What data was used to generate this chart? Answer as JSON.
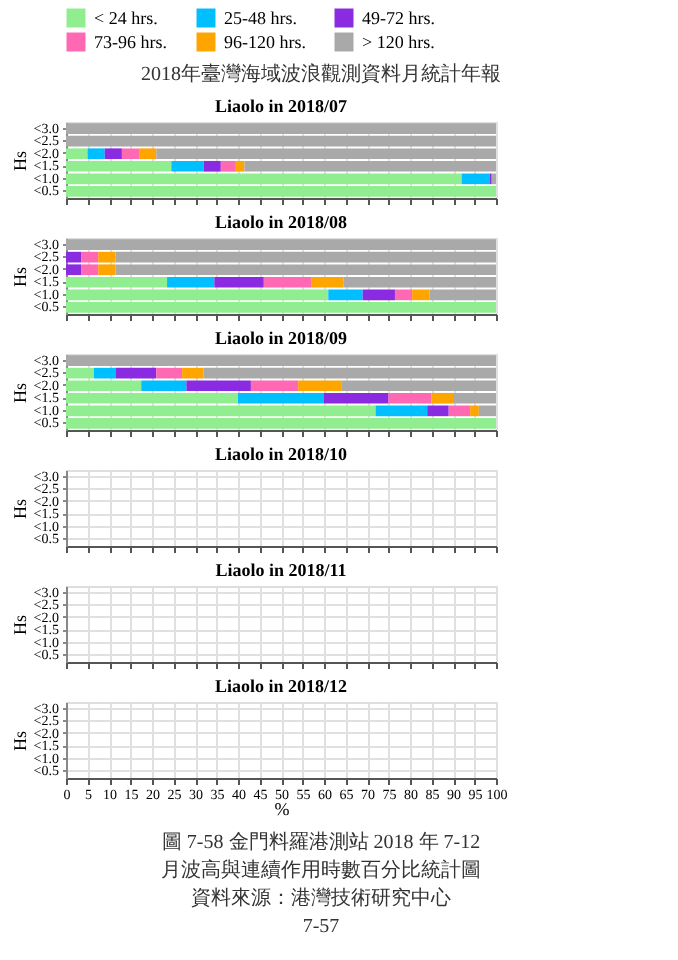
{
  "chart_data": [
    {
      "type": "bar",
      "orientation": "horizontal",
      "stacked": true,
      "title": "Liaolo in 2018/07",
      "ylabel": "Hs",
      "annotations": [
        "2018年臺灣海域波浪觀測資料月統計年報"
      ],
      "legend": "top",
      "grid": true,
      "tick_labels": "y",
      "xlim": [
        0,
        100
      ],
      "xticks": [
        0,
        5,
        10,
        15,
        20,
        25,
        30,
        35,
        40,
        45,
        50,
        55,
        60,
        65,
        70,
        75,
        80,
        85,
        90,
        95,
        100
      ],
      "categories": [
        "<3.0",
        "<2.5",
        "<2.0",
        "<1.5",
        "<1.0",
        "<0.5"
      ],
      "series": [
        {
          "name": "< 24 hrs.",
          "color": "#90ee90",
          "values": [
            0,
            0,
            5,
            24.5,
            92,
            100
          ]
        },
        {
          "name": "25-48 hrs.",
          "color": "#00bfff",
          "values": [
            0,
            0,
            4,
            7.5,
            6.5,
            0
          ]
        },
        {
          "name": "49-72 hrs.",
          "color": "#8a2be2",
          "values": [
            0,
            0,
            4,
            4,
            0.5,
            0
          ]
        },
        {
          "name": "73-96 hrs.",
          "color": "#ff69b4",
          "values": [
            0,
            0,
            4,
            3.5,
            0,
            0
          ]
        },
        {
          "name": "96-120 hrs.",
          "color": "#ffa500",
          "values": [
            0,
            0,
            4,
            2,
            0,
            0
          ]
        },
        {
          "name": "> 120 hrs.",
          "color": "#a9a9a9",
          "values": [
            100,
            100,
            79,
            58.5,
            1,
            0
          ]
        }
      ]
    },
    {
      "type": "bar",
      "orientation": "horizontal",
      "stacked": true,
      "title": "Liaolo in 2018/08",
      "ylabel": "Hs",
      "grid": true,
      "tick_labels": "y",
      "xlim": [
        0,
        100
      ],
      "xticks": [
        0,
        5,
        10,
        15,
        20,
        25,
        30,
        35,
        40,
        45,
        50,
        55,
        60,
        65,
        70,
        75,
        80,
        85,
        90,
        95,
        100
      ],
      "categories": [
        "<3.0",
        "<2.5",
        "<2.0",
        "<1.5",
        "<1.0",
        "<0.5"
      ],
      "series": [
        {
          "name": "< 24 hrs.",
          "color": "#90ee90",
          "values": [
            0,
            0,
            0,
            23.5,
            61,
            100
          ]
        },
        {
          "name": "25-48 hrs.",
          "color": "#00bfff",
          "values": [
            0,
            0,
            0,
            11,
            8,
            0
          ]
        },
        {
          "name": "49-72 hrs.",
          "color": "#8a2be2",
          "values": [
            0,
            3.5,
            3.5,
            11.5,
            7.5,
            0
          ]
        },
        {
          "name": "73-96 hrs.",
          "color": "#ff69b4",
          "values": [
            0,
            4,
            4,
            11,
            4,
            0
          ]
        },
        {
          "name": "96-120 hrs.",
          "color": "#ffa500",
          "values": [
            0,
            4,
            4,
            7.5,
            4,
            0
          ]
        },
        {
          "name": "> 120 hrs.",
          "color": "#a9a9a9",
          "values": [
            100,
            88.5,
            88.5,
            35.5,
            15.5,
            0
          ]
        }
      ]
    },
    {
      "type": "bar",
      "orientation": "horizontal",
      "stacked": true,
      "title": "Liaolo in 2018/09",
      "ylabel": "Hs",
      "grid": true,
      "tick_labels": "y",
      "xlim": [
        0,
        100
      ],
      "xticks": [
        0,
        5,
        10,
        15,
        20,
        25,
        30,
        35,
        40,
        45,
        50,
        55,
        60,
        65,
        70,
        75,
        80,
        85,
        90,
        95,
        100
      ],
      "categories": [
        "<3.0",
        "<2.5",
        "<2.0",
        "<1.5",
        "<1.0",
        "<0.5"
      ],
      "series": [
        {
          "name": "< 24 hrs.",
          "color": "#90ee90",
          "values": [
            0,
            6.5,
            17.5,
            40,
            72,
            100
          ]
        },
        {
          "name": "25-48 hrs.",
          "color": "#00bfff",
          "values": [
            0,
            5,
            10.5,
            20,
            12,
            0
          ]
        },
        {
          "name": "49-72 hrs.",
          "color": "#8a2be2",
          "values": [
            0,
            9.5,
            15,
            15,
            5,
            0
          ]
        },
        {
          "name": "73-96 hrs.",
          "color": "#ff69b4",
          "values": [
            0,
            6,
            11,
            10,
            5,
            0
          ]
        },
        {
          "name": "96-120 hrs.",
          "color": "#ffa500",
          "values": [
            0,
            5,
            10,
            5,
            2,
            0
          ]
        },
        {
          "name": "> 120 hrs.",
          "color": "#a9a9a9",
          "values": [
            100,
            68,
            36,
            10,
            4,
            0
          ]
        }
      ]
    },
    {
      "type": "bar",
      "orientation": "horizontal",
      "stacked": true,
      "title": "Liaolo in 2018/10",
      "ylabel": "Hs",
      "grid": true,
      "tick_labels": "y",
      "xlim": [
        0,
        100
      ],
      "xticks": [
        0,
        5,
        10,
        15,
        20,
        25,
        30,
        35,
        40,
        45,
        50,
        55,
        60,
        65,
        70,
        75,
        80,
        85,
        90,
        95,
        100
      ],
      "categories": [
        "<3.0",
        "<2.5",
        "<2.0",
        "<1.5",
        "<1.0",
        "<0.5"
      ]
    },
    {
      "type": "bar",
      "orientation": "horizontal",
      "stacked": true,
      "title": "Liaolo in 2018/11",
      "ylabel": "Hs",
      "grid": true,
      "tick_labels": "y",
      "xlim": [
        0,
        100
      ],
      "xticks": [
        0,
        5,
        10,
        15,
        20,
        25,
        30,
        35,
        40,
        45,
        50,
        55,
        60,
        65,
        70,
        75,
        80,
        85,
        90,
        95,
        100
      ],
      "categories": [
        "<3.0",
        "<2.5",
        "<2.0",
        "<1.5",
        "<1.0",
        "<0.5"
      ]
    },
    {
      "type": "bar",
      "orientation": "horizontal",
      "stacked": true,
      "title": "Liaolo in 2018/12",
      "ylabel": "Hs",
      "xlabel": "%",
      "grid": true,
      "xlim": [
        0,
        100
      ],
      "xticks": [
        0,
        5,
        10,
        15,
        20,
        25,
        30,
        35,
        40,
        45,
        50,
        55,
        60,
        65,
        70,
        75,
        80,
        85,
        90,
        95,
        100
      ],
      "categories": [
        "<3.0",
        "<2.5",
        "<2.0",
        "<1.5",
        "<1.0",
        "<0.5"
      ],
      "annotations": [
        "圖 7-58 金門料羅港測站 2018 年 7-12 月波高與連續作用時數百分比統計圖",
        "資料來源：港灣技術研究中心",
        "7-57"
      ]
    }
  ]
}
